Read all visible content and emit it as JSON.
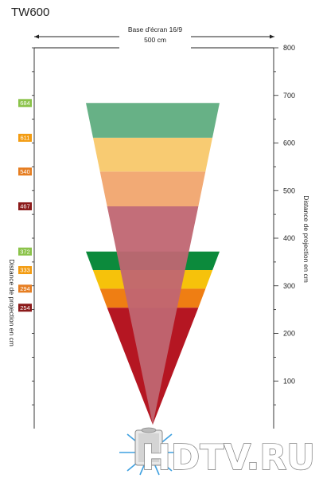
{
  "title": "TW600",
  "top_dimension": {
    "line1": "Base d'écran 16/9",
    "line2": "500 cm"
  },
  "axis_label_left": "Distance de projection en cm",
  "axis_label_right": "Distance de projection en cm",
  "right_axis_ticks": [
    "100",
    "200",
    "300",
    "400",
    "500",
    "600",
    "700",
    "800"
  ],
  "watermark": "HDTV.RU",
  "chart_data": {
    "type": "diagram",
    "title": "TW600",
    "y_unit": "cm",
    "ylim": [
      0,
      800
    ],
    "bands": [
      {
        "label": "684",
        "from": 611,
        "to": 684,
        "color": "#5fad7f",
        "badge_color": "#8bc34a",
        "group": "upper"
      },
      {
        "label": "611",
        "from": 540,
        "to": 611,
        "color": "#f8c86a",
        "badge_color": "#f39c12",
        "group": "upper"
      },
      {
        "label": "540",
        "from": 467,
        "to": 540,
        "color": "#f1a56e",
        "badge_color": "#e67e22",
        "group": "upper"
      },
      {
        "label": "467",
        "from": 0,
        "to": 467,
        "color": "#c06672",
        "badge_color": "#8b1a1a",
        "group": "upper"
      },
      {
        "label": "372",
        "from": 333,
        "to": 372,
        "color": "#0c8a3c",
        "badge_color": "#8bc34a",
        "group": "lower"
      },
      {
        "label": "333",
        "from": 294,
        "to": 333,
        "color": "#f6c20b",
        "badge_color": "#f39c12",
        "group": "lower"
      },
      {
        "label": "294",
        "from": 254,
        "to": 294,
        "color": "#ef7e13",
        "badge_color": "#e67e22",
        "group": "lower"
      },
      {
        "label": "254",
        "from": 0,
        "to": 254,
        "color": "#b51622",
        "badge_color": "#8b1a1a",
        "group": "lower"
      }
    ]
  }
}
